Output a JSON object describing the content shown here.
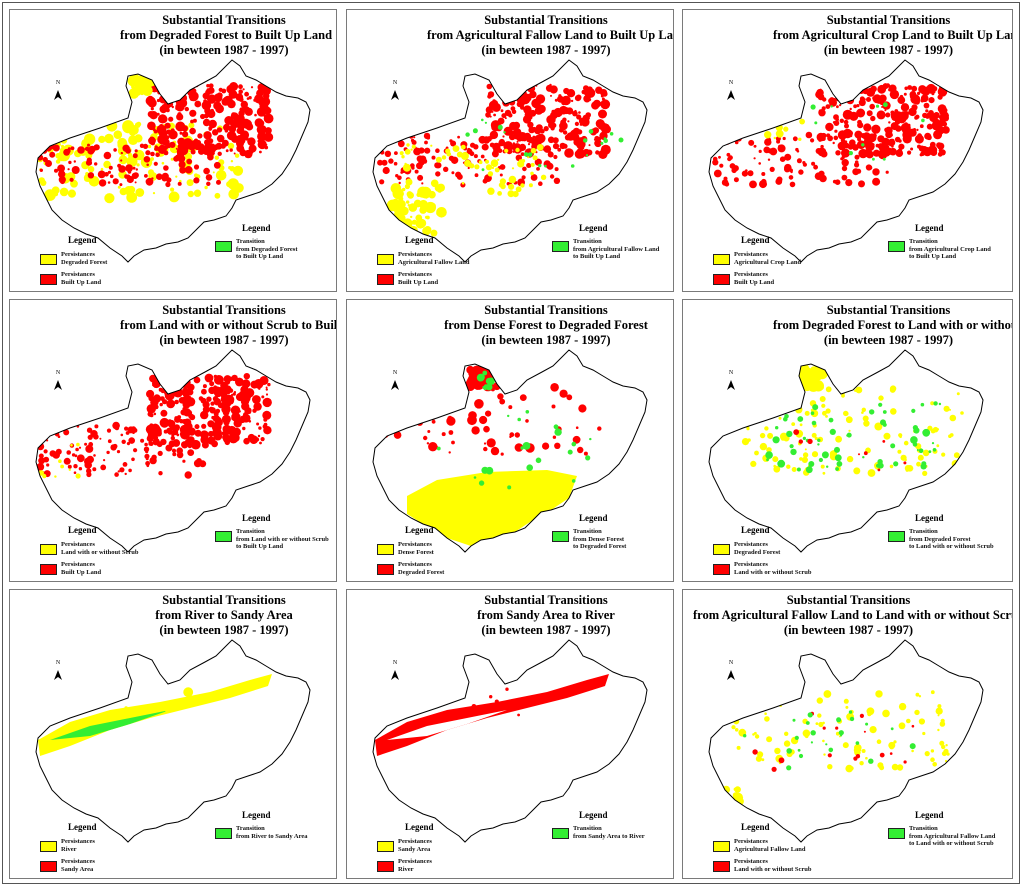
{
  "colors": {
    "persistence_yellow": "#ffff00",
    "persistence_red": "#ff0000",
    "transition_green": "#33ee33",
    "boundary": "#000000"
  },
  "north_label": "N",
  "legend_heading": "Legend",
  "panels": [
    {
      "title_line1": "Substantial Transitions",
      "title_line2": "from Degraded Forest to Built Up Land",
      "title_line3": "(in bewteen 1987 - 1997)",
      "persist1": {
        "line1": "Persistances",
        "line2": "Degraded Forest",
        "color": "#ffff00"
      },
      "persist2": {
        "line1": "Persistances",
        "line2": "Built Up Land",
        "color": "#ff0000"
      },
      "transition": {
        "line1": "Transition",
        "line2": "from Degraded Forest",
        "line3": "to Built Up Land",
        "color": "#33ee33"
      }
    },
    {
      "title_line1": "Substantial Transitions",
      "title_line2": "from Agricultural Fallow Land to Built Up Land",
      "title_line3": "(in bewteen 1987 - 1997)",
      "persist1": {
        "line1": "Persistances",
        "line2": "Agricultural Fallow Land",
        "color": "#ffff00"
      },
      "persist2": {
        "line1": "Persistances",
        "line2": "Built Up Land",
        "color": "#ff0000"
      },
      "transition": {
        "line1": "Transition",
        "line2": "from Agricultural Fallow Land",
        "line3": "to Built Up Land",
        "color": "#33ee33"
      }
    },
    {
      "title_line1": "Substantial Transitions",
      "title_line2": "from Agricultural Crop Land to Built Up Land",
      "title_line3": "(in bewteen 1987 - 1997)",
      "persist1": {
        "line1": "Persistances",
        "line2": "Agricultural Crop Land",
        "color": "#ffff00"
      },
      "persist2": {
        "line1": "Persistances",
        "line2": "Built Up Land",
        "color": "#ff0000"
      },
      "transition": {
        "line1": "Transition",
        "line2": "from Agricultural Crop Land",
        "line3": "to Built Up Land",
        "color": "#33ee33"
      }
    },
    {
      "title_line1": "Substantial Transitions",
      "title_line2": "from Land with or without Scrub to Built Up Land",
      "title_line3": "(in bewteen 1987 - 1997)",
      "persist1": {
        "line1": "Persistances",
        "line2": "Land with or without Scrub",
        "color": "#ffff00"
      },
      "persist2": {
        "line1": "Persistances",
        "line2": "Built Up Land",
        "color": "#ff0000"
      },
      "transition": {
        "line1": "Transition",
        "line2": "from Land with or without Scrub",
        "line3": "to Built Up Land",
        "color": "#33ee33"
      }
    },
    {
      "title_line1": "Substantial Transitions",
      "title_line2": "from Dense Forest to Degraded Forest",
      "title_line3": "(in bewteen 1987 - 1997)",
      "persist1": {
        "line1": "Persistances",
        "line2": "Dense Forest",
        "color": "#ffff00"
      },
      "persist2": {
        "line1": "Persistances",
        "line2": "Degraded Forest",
        "color": "#ff0000"
      },
      "transition": {
        "line1": "Transition",
        "line2": "from Dense Forest",
        "line3": "to Degraded Forest",
        "color": "#33ee33"
      }
    },
    {
      "title_line1": "Substantial Transitions",
      "title_line2": "from Degraded Forest to Land with or without Scrub",
      "title_line3": "(in bewteen 1987 - 1997)",
      "persist1": {
        "line1": "Persistances",
        "line2": "Degraded Forest",
        "color": "#ffff00"
      },
      "persist2": {
        "line1": "Persistances",
        "line2": "Land with or without Scrub",
        "color": "#ff0000"
      },
      "transition": {
        "line1": "Transition",
        "line2": "from Degraded Forest",
        "line3": "to Land with or without Scrub",
        "color": "#33ee33"
      }
    },
    {
      "title_line1": "Substantial Transitions",
      "title_line2": "from River to Sandy Area",
      "title_line3": "(in bewteen 1987 - 1997)",
      "persist1": {
        "line1": "Persistances",
        "line2": "River",
        "color": "#ffff00"
      },
      "persist2": {
        "line1": "Persistances",
        "line2": "Sandy Area",
        "color": "#ff0000"
      },
      "transition": {
        "line1": "Transition",
        "line2": "from River to Sandy Area",
        "line3": "",
        "color": "#33ee33"
      }
    },
    {
      "title_line1": "Substantial Transitions",
      "title_line2": "from Sandy Area to River",
      "title_line3": "(in bewteen 1987 - 1997)",
      "persist1": {
        "line1": "Persistances",
        "line2": "Sandy Area",
        "color": "#ffff00"
      },
      "persist2": {
        "line1": "Persistances",
        "line2": "River",
        "color": "#ff0000"
      },
      "transition": {
        "line1": "Transition",
        "line2": "from Sandy Area to River",
        "line3": "",
        "color": "#33ee33"
      }
    },
    {
      "title_line1": "Substantial Transitions",
      "title_line2": "from Agricultural Fallow Land to Land with or without Scrub",
      "title_line3": "(in bewteen 1987 - 1997)",
      "persist1": {
        "line1": "Persistances",
        "line2": "Agricultural Fallow Land",
        "color": "#ffff00"
      },
      "persist2": {
        "line1": "Persistances",
        "line2": "Land with or without Scrub",
        "color": "#ff0000"
      },
      "transition": {
        "line1": "Transition",
        "line2": "from Agricultural Fallow Land",
        "line3": "to Land with or without Scrub",
        "color": "#33ee33"
      }
    }
  ]
}
